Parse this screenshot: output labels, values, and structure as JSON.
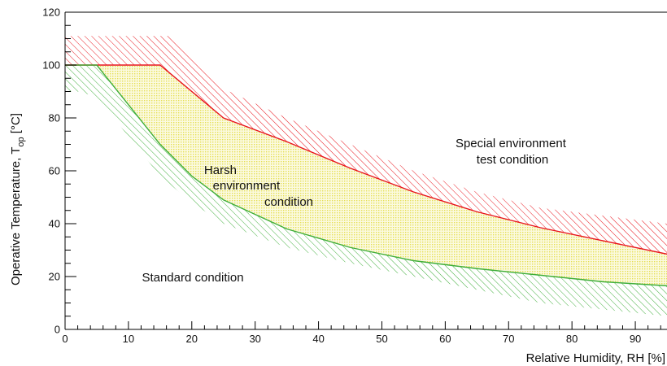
{
  "chart_data": {
    "type": "area",
    "xlabel": "Relative Humidity, RH [%]",
    "ylabel_main": "Operative Temperature, T",
    "ylabel_sub": "op",
    "ylabel_unit": " [°C]",
    "xlim": [
      0,
      95
    ],
    "ylim": [
      0,
      120
    ],
    "x_ticks": [
      0,
      10,
      20,
      30,
      40,
      50,
      60,
      70,
      80,
      90
    ],
    "y_ticks": [
      0,
      20,
      40,
      60,
      80,
      100,
      120
    ],
    "grid": false,
    "series": [
      {
        "name": "",
        "color": "#e8141c",
        "x": [
          0,
          15,
          25,
          35,
          45,
          55,
          65,
          75,
          85,
          95
        ],
        "y": [
          100,
          100,
          80,
          71,
          61,
          52,
          44.5,
          38.5,
          33.5,
          28.5
        ]
      },
      {
        "name": "",
        "color": "#3fae3a",
        "x": [
          0,
          5,
          15,
          20,
          25,
          35,
          45,
          55,
          65,
          75,
          85,
          95
        ],
        "y": [
          100,
          100,
          70,
          58,
          49,
          38,
          31,
          26,
          23,
          20.5,
          18,
          16.5
        ]
      }
    ],
    "bands": [
      {
        "color": "#e8141c",
        "pattern": "hatch",
        "upper": {
          "x": [
            0,
            17,
            25,
            35,
            45,
            55,
            65,
            75,
            85,
            95
          ],
          "y": [
            111,
            111,
            91,
            80,
            70,
            60,
            52,
            46,
            43,
            40
          ]
        },
        "lower_series": 0
      },
      {
        "color": "#3fae3a",
        "pattern": "hatch",
        "upper_series": 1,
        "lower": {
          "x": [
            0,
            2,
            5,
            15,
            20,
            25,
            35,
            45,
            55,
            65,
            75,
            85,
            95
          ],
          "y": [
            90,
            90,
            88,
            58,
            48,
            40,
            31,
            25,
            20,
            15,
            10,
            7.5,
            5
          ]
        }
      },
      {
        "color": "#f3ef92",
        "pattern": "dots",
        "between_series": [
          0,
          1
        ]
      }
    ],
    "annotations": [
      {
        "id": "harsh",
        "lines": [
          "Harsh",
          "environment",
          "condition"
        ]
      },
      {
        "id": "special",
        "lines": [
          "Special environment",
          "test condition"
        ]
      },
      {
        "id": "standard",
        "lines": [
          "Standard condition"
        ]
      }
    ]
  }
}
